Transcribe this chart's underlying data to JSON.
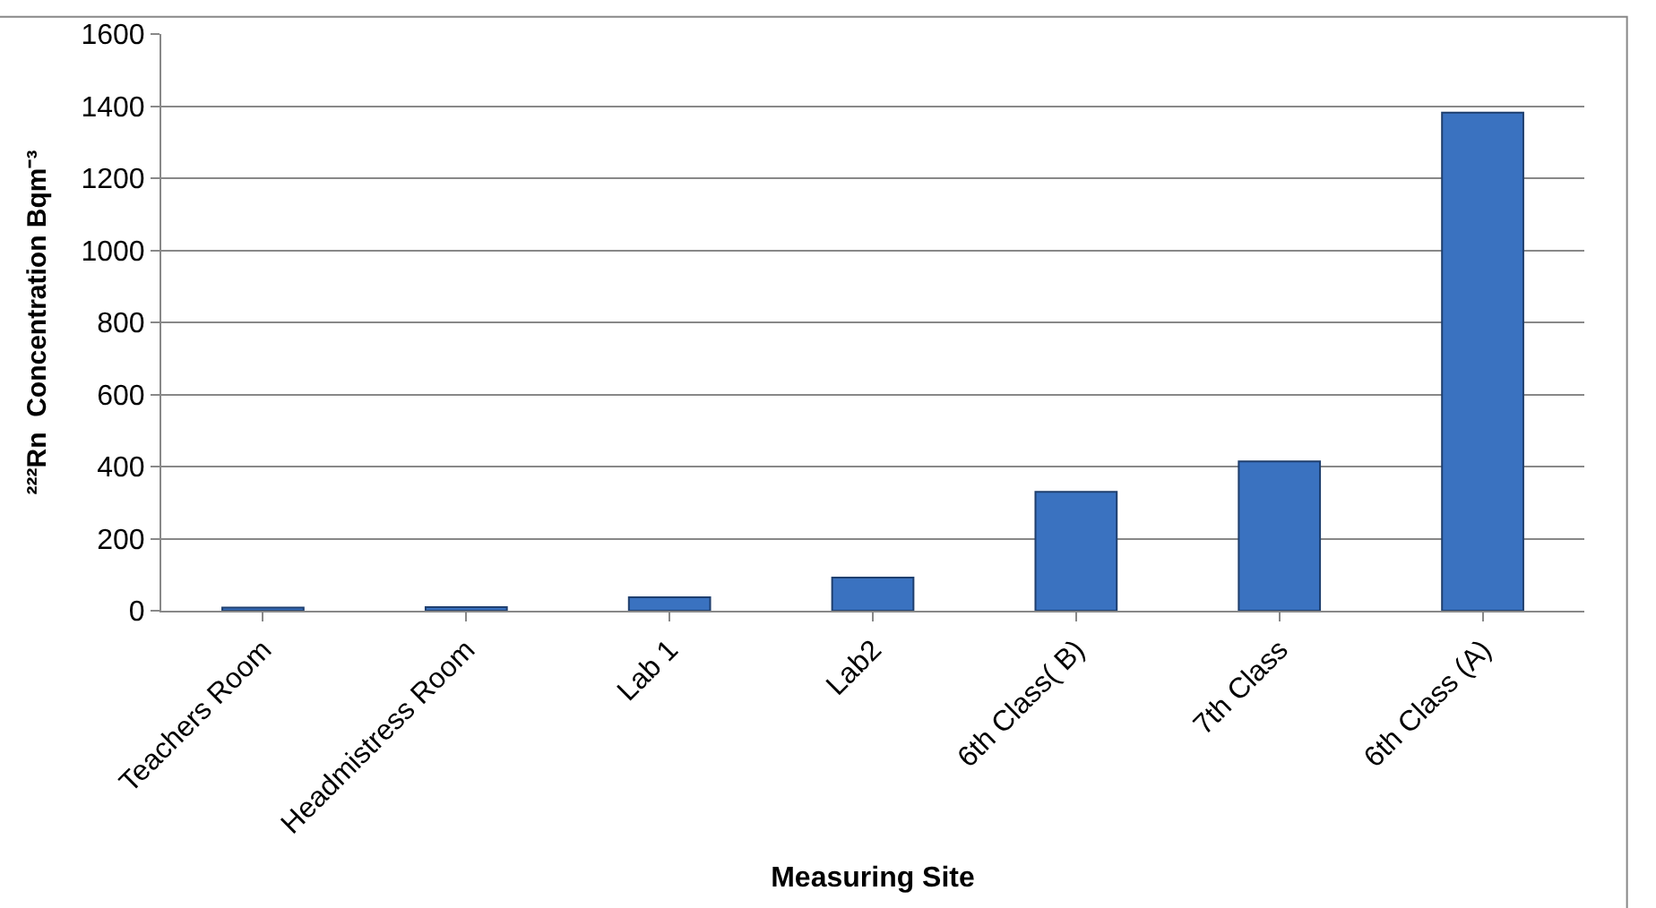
{
  "chart_data": {
    "type": "bar",
    "categories": [
      "Teachers Room",
      "Headmistress Room",
      "Lab 1",
      "Lab2",
      "6th Class( B)",
      "7th Class",
      "6th Class (A)"
    ],
    "values": [
      9,
      10,
      37,
      92,
      330,
      414,
      1382
    ],
    "color": "#3a72c0",
    "xlabel": "Measuring Site",
    "ylabel": "²²²Rn  Concentration Bqm⁻³",
    "ylim": [
      0,
      1600
    ],
    "yticks": [
      0,
      200,
      400,
      600,
      800,
      1000,
      1200,
      1400,
      1600
    ],
    "grid": "y",
    "legend": false
  }
}
